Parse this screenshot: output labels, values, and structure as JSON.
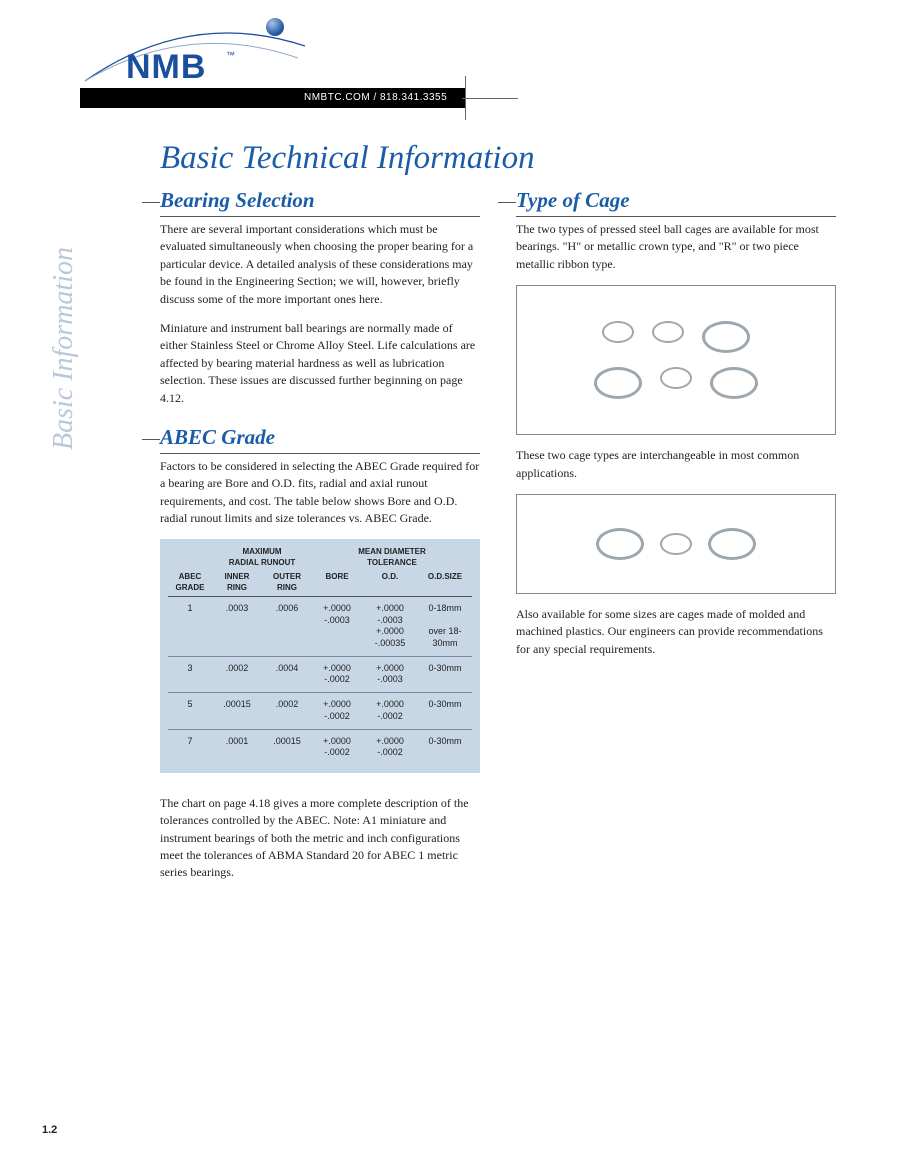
{
  "brand": {
    "name": "NMB",
    "tm": "™"
  },
  "contact": "NMBTC.COM / 818.341.3355",
  "sidebar_label": "Basic Information",
  "page_title": "Basic Technical Information",
  "page_number": "1.2",
  "left": {
    "section1": {
      "title": "Bearing Selection",
      "p1": "There are several important considerations which must be evaluated simultaneously when choosing the proper bearing for a particular device. A detailed analysis of these considerations may be found in the Engineering Section; we will, however, briefly discuss some of the more important ones here.",
      "p2": "Miniature and instrument ball bearings are normally made of either Stainless Steel or Chrome Alloy Steel. Life calculations are affected by bearing material hardness as well as lubrication selection. These issues are discussed further beginning on page 4.12."
    },
    "section2": {
      "title": "ABEC Grade",
      "p1": "Factors to be considered in selecting the ABEC Grade required for a bearing are Bore and O.D. fits, radial and axial runout requirements, and cost. The table below shows Bore and O.D. radial runout limits and size tolerances vs. ABEC Grade."
    },
    "footer_p": "The chart on page 4.18 gives a more complete description of the tolerances controlled by the ABEC. Note: A1 miniature and instrument bearings of both the metric and inch configurations meet the tolerances of ABMA Standard 20 for ABEC 1 metric series bearings."
  },
  "right": {
    "section1": {
      "title": "Type of Cage",
      "p1": "The two types of pressed steel ball cages are available for most bearings. \"H\" or metallic crown type, and \"R\" or two piece metallic ribbon type.",
      "p2": "These two cage types are interchangeable in most common applications.",
      "p3": "Also available for some sizes are cages made of molded and machined plastics. Our engineers can provide recommendations for any special requirements."
    }
  },
  "abec_table": {
    "header_group1": "MAXIMUM\nRADIAL RUNOUT",
    "header_group2": "MEAN DIAMETER\nTOLERANCE",
    "cols": {
      "grade": "ABEC\nGRADE",
      "inner": "INNER\nRING",
      "outer": "OUTER\nRING",
      "bore": "BORE",
      "od": "O.D.",
      "size": "O.D.SIZE"
    },
    "rows": [
      {
        "grade": "1",
        "inner": ".0003",
        "outer": ".0006",
        "bore": "+.0000\n-.0003",
        "od": "+.0000\n-.0003\n+.0000\n-.00035",
        "size": "0-18mm\n\nover 18-\n30mm"
      },
      {
        "grade": "3",
        "inner": ".0002",
        "outer": ".0004",
        "bore": "+.0000\n-.0002",
        "od": "+.0000\n-.0003",
        "size": "0-30mm"
      },
      {
        "grade": "5",
        "inner": ".00015",
        "outer": ".0002",
        "bore": "+.0000\n-.0002",
        "od": "+.0000\n-.0002",
        "size": "0-30mm"
      },
      {
        "grade": "7",
        "inner": ".0001",
        "outer": ".00015",
        "bore": "+.0000\n-.0002",
        "od": "+.0000\n-.0002",
        "size": "0-30mm"
      }
    ]
  },
  "colors": {
    "brand_blue": "#1a4e9e",
    "heading_blue": "#1a5ca8",
    "sidebar_grey": "#b9c7db",
    "table_bg": "#c7d7e5",
    "rule": "#666666",
    "text": "#222222"
  }
}
